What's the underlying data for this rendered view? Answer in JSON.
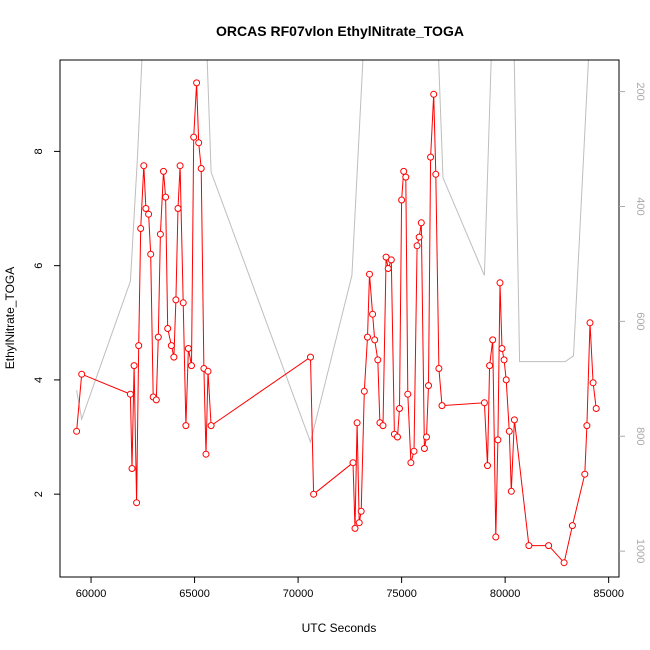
{
  "chart_data": {
    "type": "line",
    "title": "ORCAS RF07vlon EthylNitrate_TOGA",
    "xlabel": "UTC Seconds",
    "ylabel": "EthylNitrate_TOGA",
    "xlim": [
      58500,
      85500
    ],
    "ylim": [
      0.55,
      9.6
    ],
    "y2lim": [
      1045,
      145
    ],
    "y2_reversed": true,
    "x_ticks": [
      60000,
      65000,
      70000,
      75000,
      80000,
      85000
    ],
    "y_ticks": [
      2,
      4,
      6,
      8
    ],
    "y2_ticks": [
      200,
      400,
      600,
      800,
      1000
    ],
    "grid": false,
    "legend": "none",
    "colors": {
      "series": "#ff0000",
      "secondary": "#bebebe"
    },
    "series": [
      {
        "axis": "left",
        "style": "line+open-circles",
        "points": [
          [
            59300,
            3.1
          ],
          [
            59550,
            4.1
          ],
          [
            61900,
            3.75
          ],
          [
            61980,
            2.45
          ],
          [
            62080,
            4.25
          ],
          [
            62200,
            1.85
          ],
          [
            62300,
            4.6
          ],
          [
            62400,
            6.65
          ],
          [
            62550,
            7.75
          ],
          [
            62650,
            7.0
          ],
          [
            62780,
            6.9
          ],
          [
            62880,
            6.2
          ],
          [
            63000,
            3.7
          ],
          [
            63150,
            3.65
          ],
          [
            63250,
            4.75
          ],
          [
            63350,
            6.55
          ],
          [
            63500,
            7.65
          ],
          [
            63600,
            7.2
          ],
          [
            63700,
            4.9
          ],
          [
            63880,
            4.6
          ],
          [
            64000,
            4.4
          ],
          [
            64100,
            5.4
          ],
          [
            64200,
            7.0
          ],
          [
            64300,
            7.75
          ],
          [
            64450,
            5.35
          ],
          [
            64580,
            3.2
          ],
          [
            64700,
            4.55
          ],
          [
            64850,
            4.25
          ],
          [
            64960,
            8.25
          ],
          [
            65100,
            9.2
          ],
          [
            65200,
            8.15
          ],
          [
            65320,
            7.7
          ],
          [
            65450,
            4.2
          ],
          [
            65550,
            2.7
          ],
          [
            65650,
            4.15
          ],
          [
            65800,
            3.2
          ],
          [
            70600,
            4.4
          ],
          [
            70750,
            2.0
          ],
          [
            72650,
            2.55
          ],
          [
            72750,
            1.4
          ],
          [
            72850,
            3.25
          ],
          [
            72950,
            1.5
          ],
          [
            73050,
            1.7
          ],
          [
            73200,
            3.8
          ],
          [
            73350,
            4.75
          ],
          [
            73450,
            5.85
          ],
          [
            73600,
            5.15
          ],
          [
            73700,
            4.7
          ],
          [
            73850,
            4.35
          ],
          [
            73950,
            3.25
          ],
          [
            74100,
            3.2
          ],
          [
            74250,
            6.15
          ],
          [
            74350,
            5.95
          ],
          [
            74500,
            6.1
          ],
          [
            74650,
            3.05
          ],
          [
            74800,
            3.0
          ],
          [
            74900,
            3.5
          ],
          [
            75000,
            7.15
          ],
          [
            75100,
            7.65
          ],
          [
            75200,
            7.55
          ],
          [
            75300,
            3.75
          ],
          [
            75450,
            2.55
          ],
          [
            75600,
            2.75
          ],
          [
            75750,
            6.35
          ],
          [
            75850,
            6.5
          ],
          [
            75950,
            6.75
          ],
          [
            76100,
            2.8
          ],
          [
            76200,
            3.0
          ],
          [
            76300,
            3.9
          ],
          [
            76400,
            7.9
          ],
          [
            76550,
            9.0
          ],
          [
            76650,
            7.6
          ],
          [
            76800,
            4.2
          ],
          [
            76950,
            3.55
          ],
          [
            79000,
            3.6
          ],
          [
            79150,
            2.5
          ],
          [
            79250,
            4.25
          ],
          [
            79400,
            4.7
          ],
          [
            79550,
            1.25
          ],
          [
            79650,
            2.95
          ],
          [
            79750,
            5.7
          ],
          [
            79850,
            4.55
          ],
          [
            79950,
            4.35
          ],
          [
            80050,
            4.0
          ],
          [
            80200,
            3.1
          ],
          [
            80300,
            2.05
          ],
          [
            80450,
            3.3
          ],
          [
            81150,
            1.1
          ],
          [
            82100,
            1.1
          ],
          [
            82850,
            0.8
          ],
          [
            83250,
            1.45
          ],
          [
            83850,
            2.35
          ],
          [
            83950,
            3.2
          ],
          [
            84100,
            5.0
          ],
          [
            84250,
            3.95
          ],
          [
            84400,
            3.5
          ]
        ]
      },
      {
        "axis": "right",
        "style": "line",
        "points": [
          [
            59300,
            720
          ],
          [
            59550,
            770
          ],
          [
            61900,
            530
          ],
          [
            62250,
            310
          ],
          [
            62600,
            30
          ],
          [
            65500,
            30
          ],
          [
            65800,
            340
          ],
          [
            70600,
            810
          ],
          [
            72600,
            520
          ],
          [
            73250,
            60
          ],
          [
            73500,
            60
          ],
          [
            76700,
            60
          ],
          [
            77000,
            350
          ],
          [
            79000,
            520
          ],
          [
            79400,
            60
          ],
          [
            80400,
            60
          ],
          [
            80700,
            670
          ],
          [
            82900,
            670
          ],
          [
            83300,
            660
          ],
          [
            84200,
            20
          ]
        ]
      }
    ]
  }
}
